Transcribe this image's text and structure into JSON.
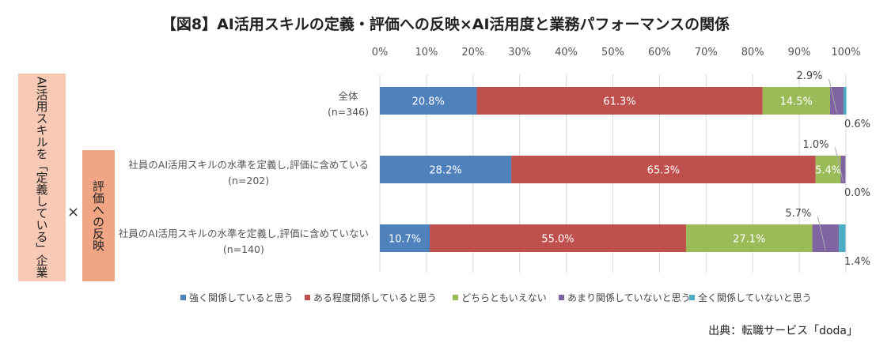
{
  "title": "【図8】AI活用スキルの定義・評価への反映×AI活用度と業務パフォーマンスの関係",
  "side_labels": {
    "group": "AI活用スキルを「定義している」企業",
    "times": "×",
    "sub": "評価への反映"
  },
  "source": "出典：転職サービス「doda」",
  "chart_data": {
    "type": "bar",
    "orientation": "horizontal",
    "stacked": true,
    "xlim": [
      0,
      100
    ],
    "x_ticks": [
      "0%",
      "10%",
      "20%",
      "30%",
      "40%",
      "50%",
      "60%",
      "70%",
      "80%",
      "90%",
      "100%"
    ],
    "grid": true,
    "legend_position": "bottom",
    "categories": [
      {
        "label": "全体",
        "n": "(n=346)"
      },
      {
        "label": "社員のAI活用スキルの水準を定義し,評価に含めている",
        "n": "(n=202)"
      },
      {
        "label": "社員のAI活用スキルの水準を定義し,評価に含めていない",
        "n": "(n=140)"
      }
    ],
    "series": [
      {
        "name": "強く関係していると思う",
        "color": "#4f81bd",
        "values": [
          20.8,
          28.2,
          10.7
        ],
        "labels": [
          "20.8%",
          "28.2%",
          "10.7%"
        ]
      },
      {
        "name": "ある程度関係していると思う",
        "color": "#c0504d",
        "values": [
          61.3,
          65.3,
          55.0
        ],
        "labels": [
          "61.3%",
          "65.3%",
          "55.0%"
        ]
      },
      {
        "name": "どちらともいえない",
        "color": "#9bbb59",
        "values": [
          14.5,
          5.4,
          27.1
        ],
        "labels": [
          "14.5%",
          "5.4%",
          "27.1%"
        ]
      },
      {
        "name": "あまり関係していないと思う",
        "color": "#8064a2",
        "values": [
          2.9,
          1.0,
          5.7
        ],
        "labels": [
          "2.9%",
          "1.0%",
          "5.7%"
        ]
      },
      {
        "name": "全く関係していないと思う",
        "color": "#4bacc6",
        "values": [
          0.6,
          0.0,
          1.4
        ],
        "labels": [
          "0.6%",
          "0.0%",
          "1.4%"
        ]
      }
    ]
  }
}
